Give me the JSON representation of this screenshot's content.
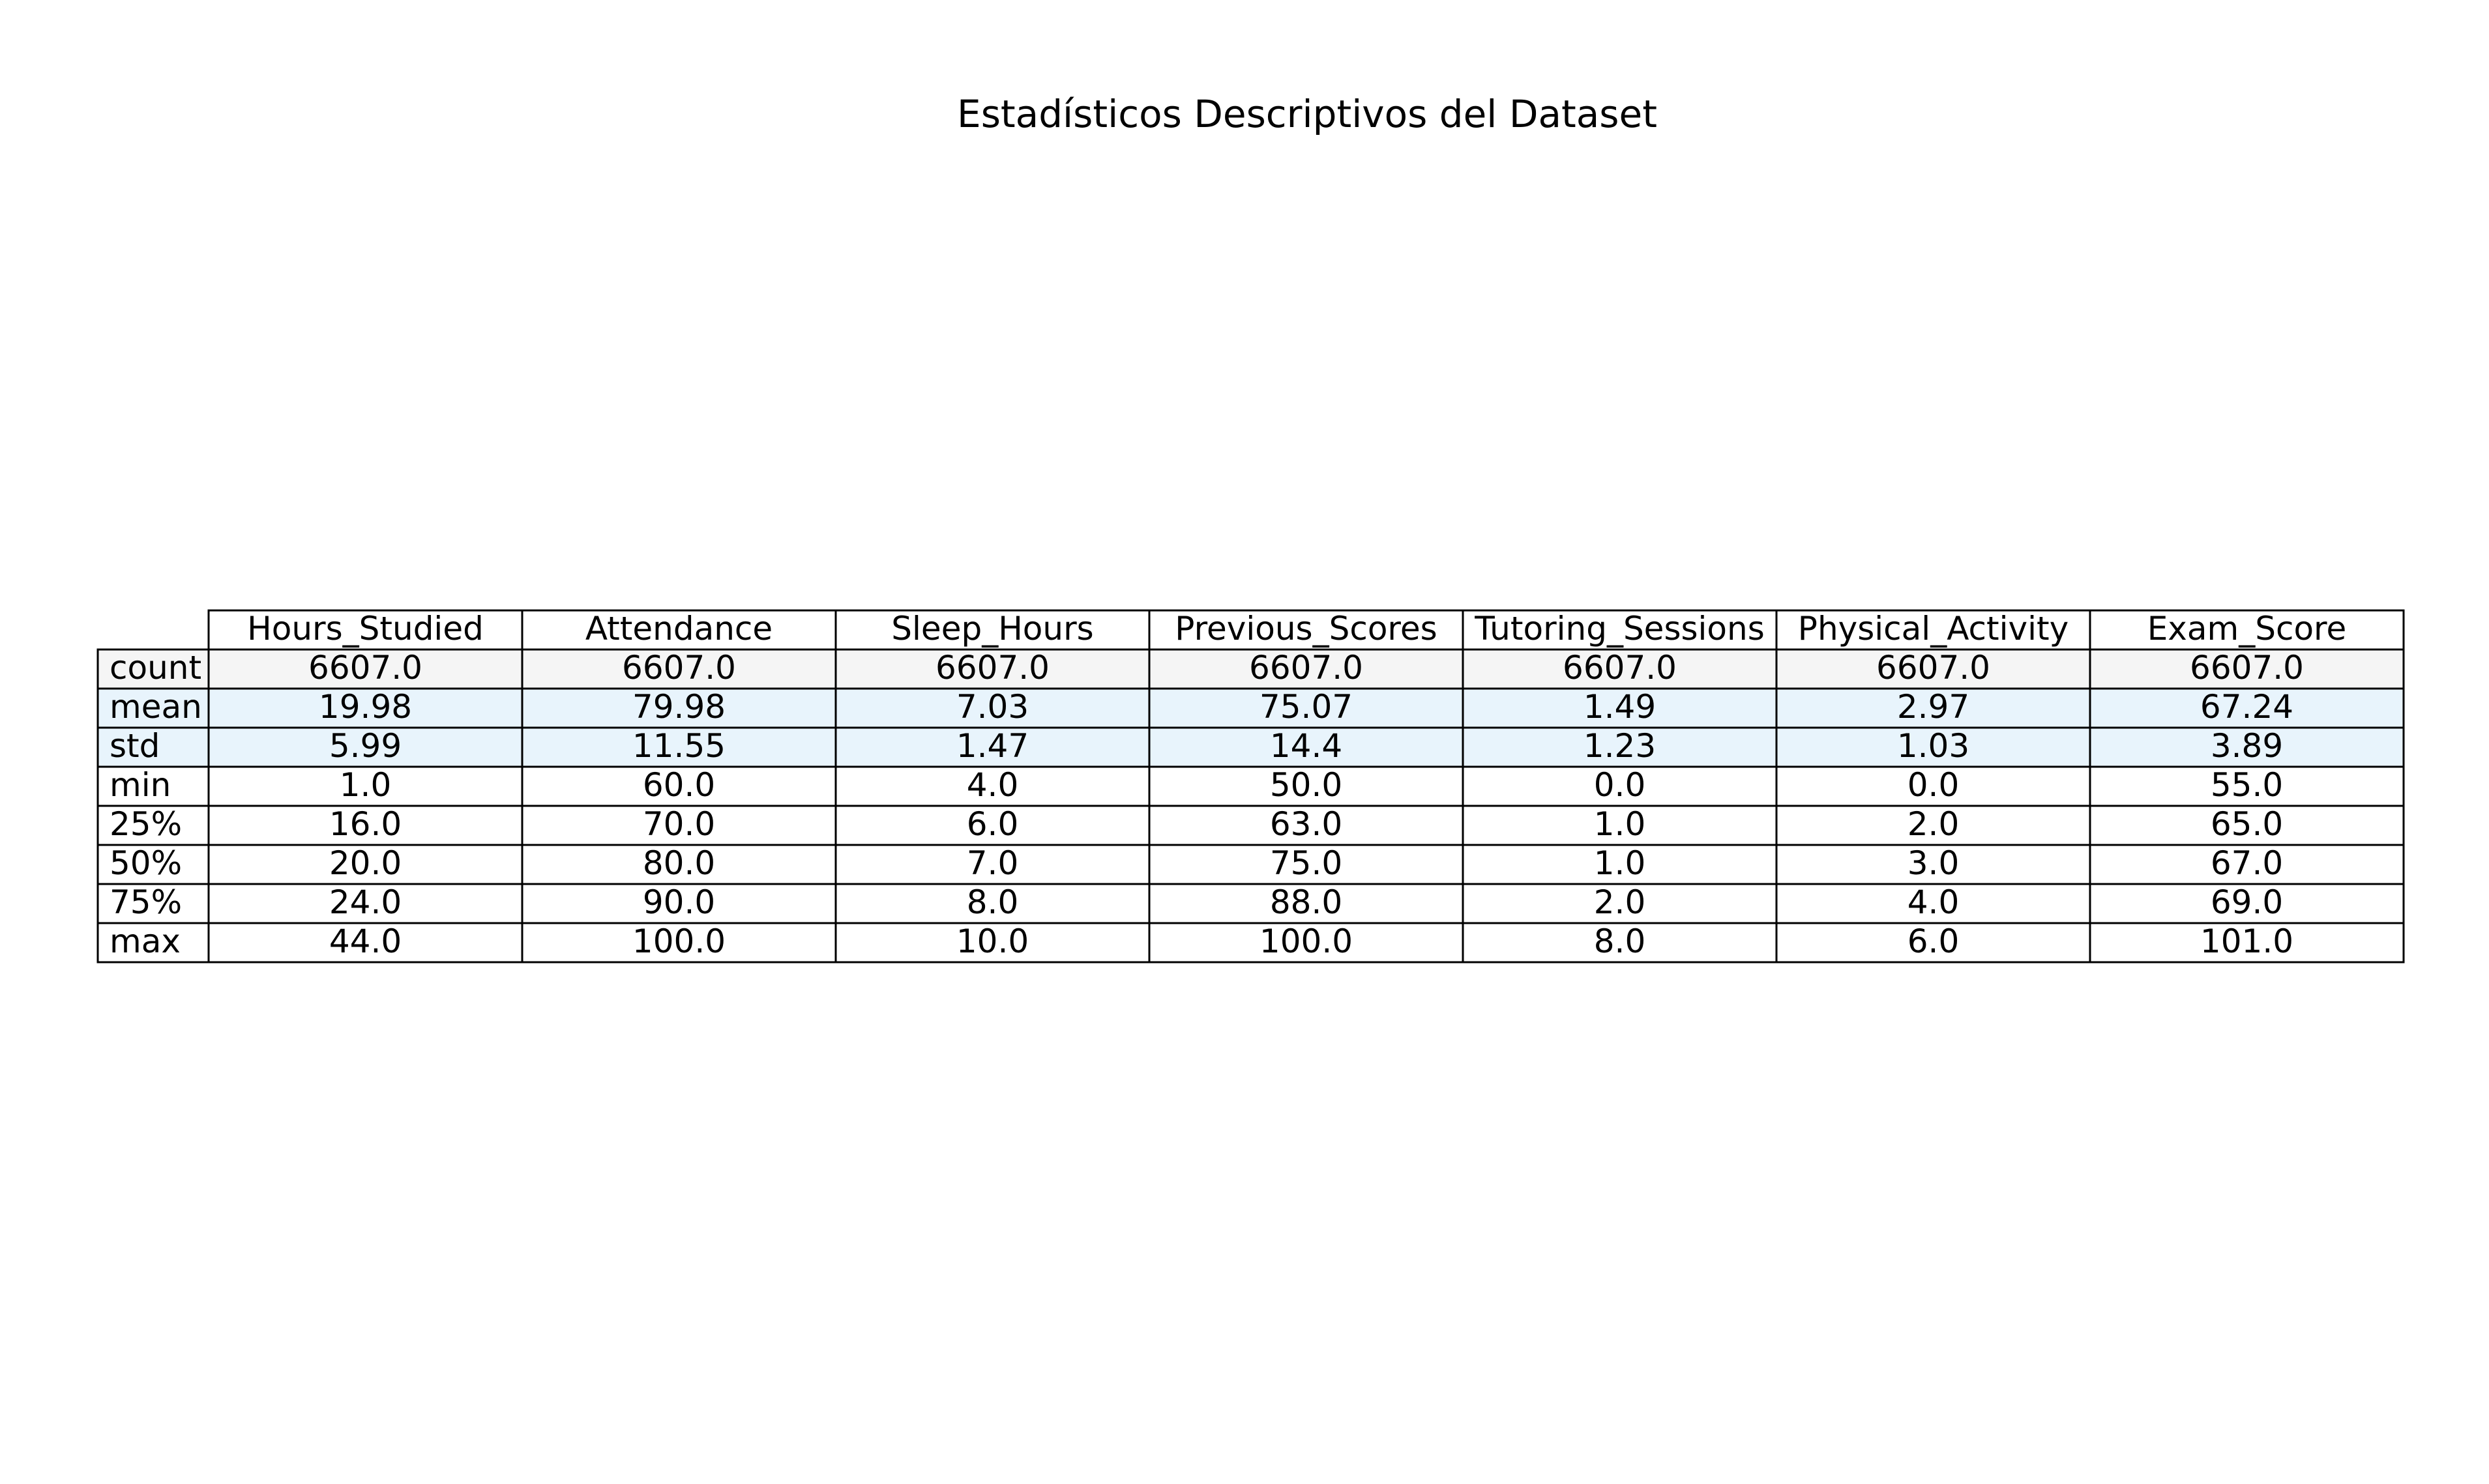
{
  "chart_data": {
    "type": "table",
    "title": "Estadísticos Descriptivos del Dataset",
    "columns": [
      "Hours_Studied",
      "Attendance",
      "Sleep_Hours",
      "Previous_Scores",
      "Tutoring_Sessions",
      "Physical_Activity",
      "Exam_Score"
    ],
    "rows": [
      {
        "label": "count",
        "values": [
          "6607.0",
          "6607.0",
          "6607.0",
          "6607.0",
          "6607.0",
          "6607.0",
          "6607.0"
        ]
      },
      {
        "label": "mean",
        "values": [
          "19.98",
          "79.98",
          "7.03",
          "75.07",
          "1.49",
          "2.97",
          "67.24"
        ]
      },
      {
        "label": "std",
        "values": [
          "5.99",
          "11.55",
          "1.47",
          "14.4",
          "1.23",
          "1.03",
          "3.89"
        ]
      },
      {
        "label": "min",
        "values": [
          "1.0",
          "60.0",
          "4.0",
          "50.0",
          "0.0",
          "0.0",
          "55.0"
        ]
      },
      {
        "label": "25%",
        "values": [
          "16.0",
          "70.0",
          "6.0",
          "63.0",
          "1.0",
          "2.0",
          "65.0"
        ]
      },
      {
        "label": "50%",
        "values": [
          "20.0",
          "80.0",
          "7.0",
          "75.0",
          "1.0",
          "3.0",
          "67.0"
        ]
      },
      {
        "label": "75%",
        "values": [
          "24.0",
          "90.0",
          "8.0",
          "88.0",
          "2.0",
          "4.0",
          "69.0"
        ]
      },
      {
        "label": "max",
        "values": [
          "44.0",
          "100.0",
          "10.0",
          "100.0",
          "8.0",
          "6.0",
          "101.0"
        ]
      }
    ],
    "row_colors": {
      "count": "#f5f5f5",
      "mean": "#e8f4fc",
      "std": "#e8f4fc"
    },
    "default_row_color": "#ffffff",
    "border_color": "#000000"
  }
}
